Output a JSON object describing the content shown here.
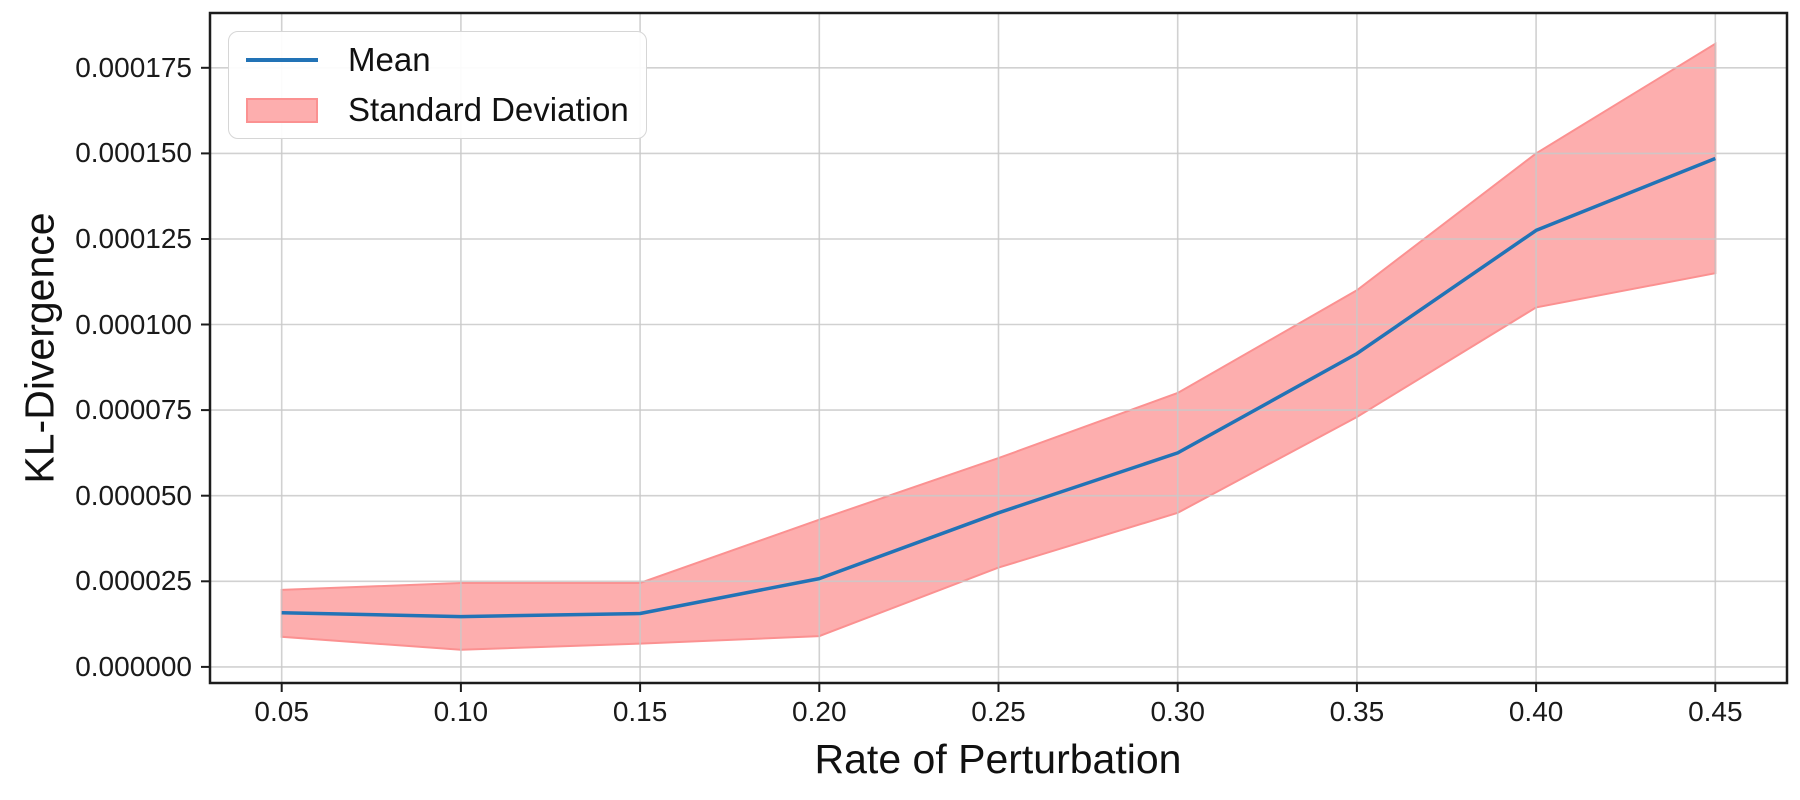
{
  "figure": {
    "xlabel": "Rate of Perturbation",
    "ylabel": "KL-Divergence"
  },
  "legend": {
    "items": [
      {
        "label": "Mean",
        "swatch": "line"
      },
      {
        "label": "Standard Deviation",
        "swatch": "patch"
      }
    ]
  },
  "chart_data": {
    "type": "line",
    "title": "",
    "xlabel": "Rate of Perturbation",
    "ylabel": "KL-Divergence",
    "x": [
      0.05,
      0.1,
      0.15,
      0.2,
      0.25,
      0.3,
      0.35,
      0.4,
      0.45
    ],
    "series": [
      {
        "name": "Mean",
        "values": [
          1.58e-05,
          1.47e-05,
          1.56e-05,
          2.58e-05,
          4.5e-05,
          6.25e-05,
          9.15e-05,
          0.0001275,
          0.0001485
        ]
      }
    ],
    "band": {
      "name": "Standard Deviation",
      "lower": [
        8.8e-06,
        5e-06,
        6.8e-06,
        9e-06,
        2.9e-05,
        4.5e-05,
        7.3e-05,
        0.000105,
        0.000115
      ],
      "upper": [
        2.25e-05,
        2.45e-05,
        2.45e-05,
        4.3e-05,
        6.1e-05,
        8e-05,
        0.00011,
        0.00015,
        0.000182
      ]
    },
    "xticks": [
      0.05,
      0.1,
      0.15,
      0.2,
      0.25,
      0.3,
      0.35,
      0.4,
      0.45
    ],
    "xtick_labels": [
      "0.05",
      "0.10",
      "0.15",
      "0.20",
      "0.25",
      "0.30",
      "0.35",
      "0.40",
      "0.45"
    ],
    "yticks": [
      0.0,
      2.5e-05,
      5e-05,
      7.5e-05,
      0.0001,
      0.000125,
      0.00015,
      0.000175
    ],
    "ytick_labels": [
      "0.000000",
      "0.000025",
      "0.000050",
      "0.000075",
      "0.000100",
      "0.000125",
      "0.000150",
      "0.000175"
    ],
    "xlim": [
      0.03,
      0.47
    ],
    "ylim": [
      -4.7e-06,
      0.000191
    ],
    "grid": true,
    "legend_position": "upper left",
    "colors": {
      "mean_line": "#2273b6",
      "band_fill": "#fdaeae",
      "band_edge": "#fb9191",
      "grid": "#c9c9c9",
      "spine": "#1c1c1c",
      "tick": "#1c1c1c"
    }
  }
}
